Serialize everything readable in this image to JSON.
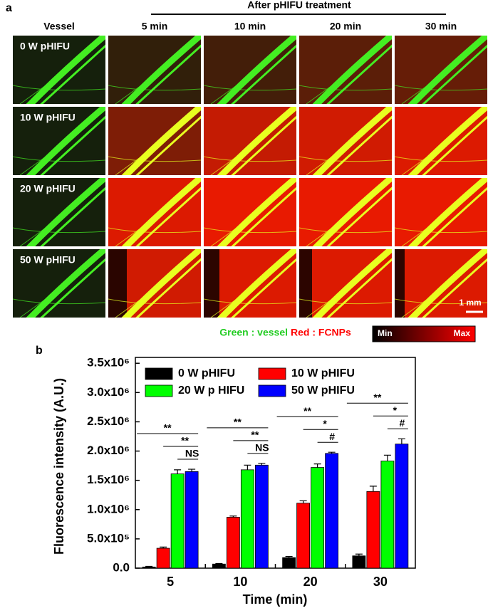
{
  "panel_a": {
    "label": "a",
    "header": "After pHIFU treatment",
    "columns": [
      "Vessel",
      "5 min",
      "10 min",
      "20 min",
      "30 min"
    ],
    "rows": [
      "0 W pHIFU",
      "10 W pHIFU",
      "20 W pHIFU",
      "50 W pHIFU"
    ],
    "scale_bar": "1 mm",
    "legend": {
      "green": "Green : vessel",
      "red": "Red : FCNPs",
      "min": "Min",
      "max": "Max"
    }
  },
  "chart_data": {
    "type": "bar",
    "panel_label": "b",
    "x_label": "Time (min)",
    "y_label": "Fluorescence intensity (A.U.)",
    "categories": [
      "5",
      "10",
      "20",
      "30"
    ],
    "series": [
      {
        "name": "0 W pHIFU",
        "color": "#000000",
        "values": [
          20000,
          70000,
          180000,
          210000
        ],
        "errors": [
          10000,
          10000,
          20000,
          30000
        ]
      },
      {
        "name": "10 W pHIFU",
        "color": "#ff0000",
        "values": [
          340000,
          870000,
          1110000,
          1310000
        ],
        "errors": [
          20000,
          20000,
          40000,
          90000
        ]
      },
      {
        "name": "20 W p HIFU",
        "color": "#00ff00",
        "values": [
          1610000,
          1680000,
          1720000,
          1830000
        ],
        "errors": [
          70000,
          80000,
          60000,
          100000
        ]
      },
      {
        "name": "50 W pHIFU",
        "color": "#0000ff",
        "values": [
          1650000,
          1760000,
          1960000,
          2120000
        ],
        "errors": [
          40000,
          30000,
          20000,
          90000
        ]
      }
    ],
    "significance": [
      [
        "**",
        "**",
        "NS"
      ],
      [
        "**",
        "**",
        "NS"
      ],
      [
        "**",
        "*",
        "#"
      ],
      [
        "**",
        "*",
        "#"
      ]
    ],
    "ylim": [
      0,
      3600000
    ],
    "yticks": [
      {
        "value": 0,
        "label": "0.0"
      },
      {
        "value": 500000,
        "label": "5.0x10⁵"
      },
      {
        "value": 1000000,
        "label": "1.0x10⁶"
      },
      {
        "value": 1500000,
        "label": "1.5x10⁶"
      },
      {
        "value": 2000000,
        "label": "2.0x10⁶"
      },
      {
        "value": 2500000,
        "label": "2.5x10⁶"
      },
      {
        "value": 3000000,
        "label": "3.0x10⁶"
      },
      {
        "value": 3500000,
        "label": "3.5x10⁶"
      }
    ]
  }
}
